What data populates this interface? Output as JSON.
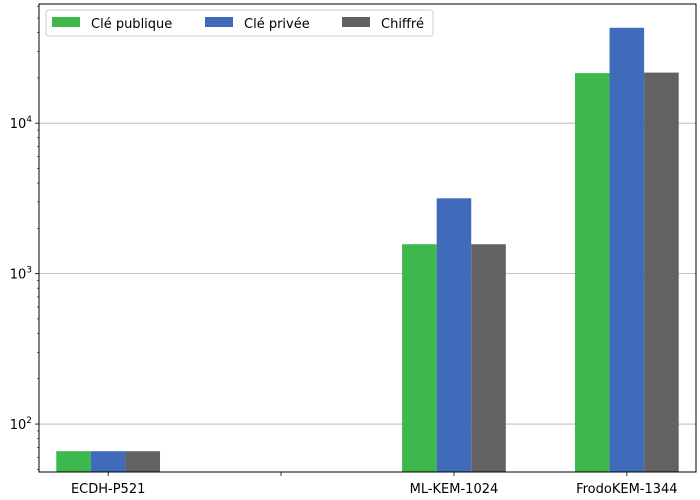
{
  "chart_data": {
    "type": "bar",
    "title": "",
    "xlabel": "",
    "ylabel": "",
    "yscale": "log",
    "ylim": [
      48,
      62000
    ],
    "grid": "horizontal-major",
    "legend": {
      "placement": "top-left",
      "columns": 3
    },
    "categories": [
      "ECDH-P521",
      "",
      "ML-KEM-1024",
      "FrodoKEM-1344"
    ],
    "x_ticks": [
      "ECDH-P521",
      "",
      "ML-KEM-1024",
      "FrodoKEM-1344"
    ],
    "y_ticks": [
      {
        "base": "10",
        "exp": "2",
        "value": 100
      },
      {
        "base": "10",
        "exp": "3",
        "value": 1000
      },
      {
        "base": "10",
        "exp": "4",
        "value": 10000
      }
    ],
    "series": [
      {
        "name": "Clé publique",
        "color": "#3cb84c",
        "values": [
          66,
          null,
          1568,
          21520
        ]
      },
      {
        "name": "Clé privée",
        "color": "#3f6bba",
        "values": [
          66,
          null,
          3168,
          43088
        ]
      },
      {
        "name": "Chiffré",
        "color": "#636162",
        "values": [
          66,
          null,
          1568,
          21696
        ]
      }
    ]
  }
}
